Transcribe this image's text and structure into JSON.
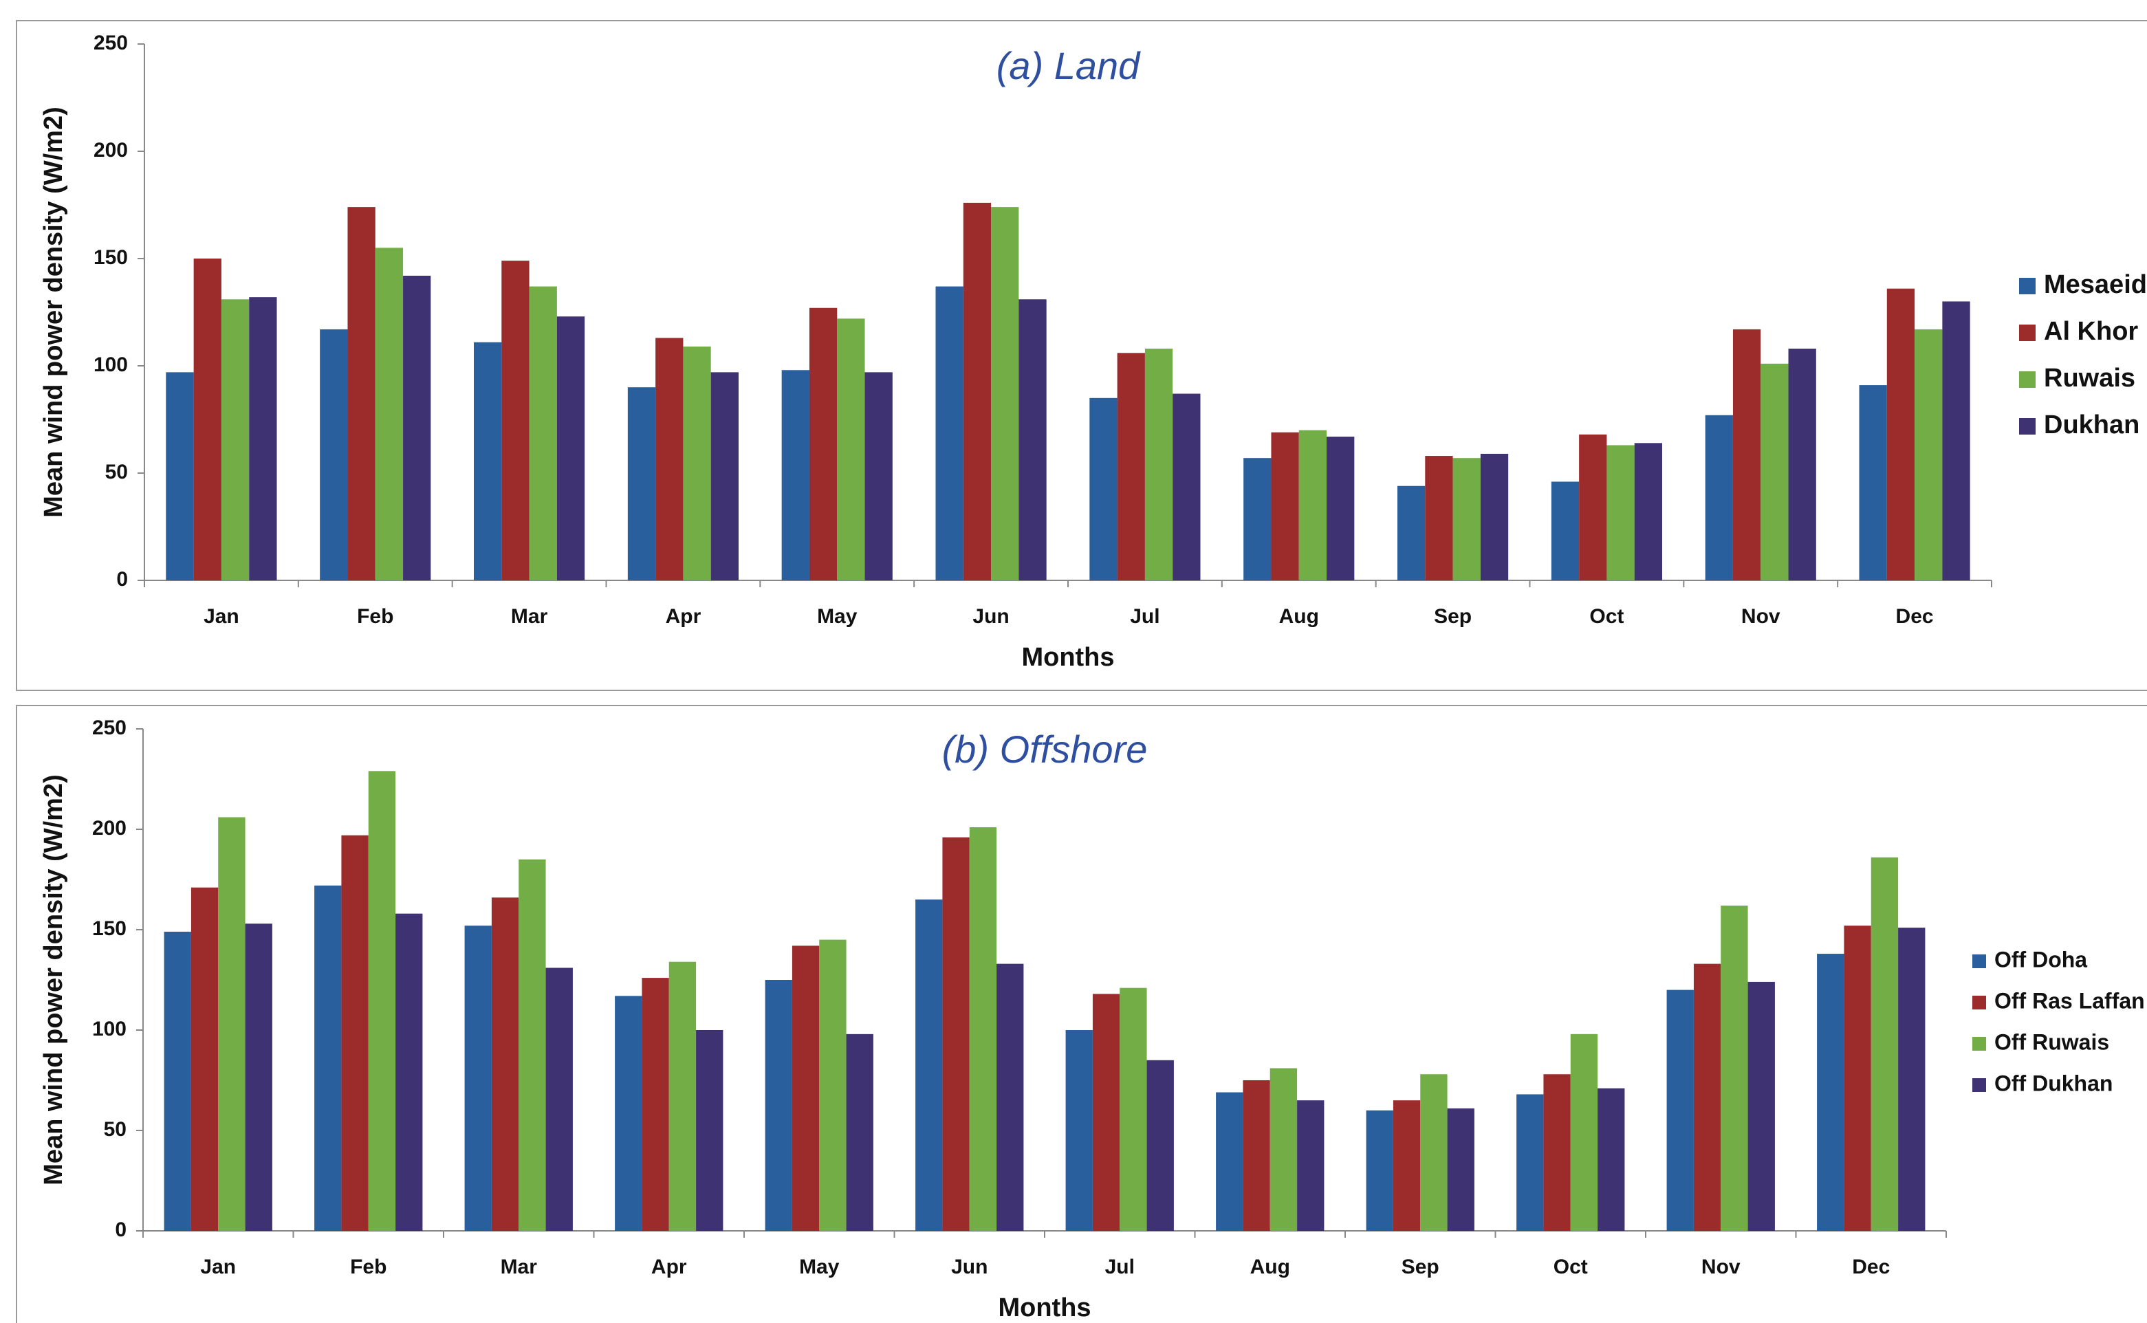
{
  "chart_data": [
    {
      "type": "bar",
      "title": "(a) Land",
      "x_label": "Months",
      "y_label": "Mean wind power density (W/m2)",
      "categories": [
        "Jan",
        "Feb",
        "Mar",
        "Apr",
        "May",
        "Jun",
        "Jul",
        "Aug",
        "Sep",
        "Oct",
        "Nov",
        "Dec"
      ],
      "series": [
        {
          "name": "Mesaeid",
          "color": "#2a5f9e",
          "values": [
            97,
            117,
            111,
            90,
            98,
            137,
            85,
            57,
            44,
            46,
            77,
            91
          ]
        },
        {
          "name": "Al Khor",
          "color": "#9c2b2b",
          "values": [
            150,
            174,
            149,
            113,
            127,
            176,
            106,
            69,
            58,
            68,
            117,
            136
          ]
        },
        {
          "name": "Ruwais",
          "color": "#72ad46",
          "values": [
            131,
            155,
            137,
            109,
            122,
            174,
            108,
            70,
            57,
            63,
            101,
            117
          ]
        },
        {
          "name": "Dukhan",
          "color": "#3e3273",
          "values": [
            132,
            142,
            123,
            97,
            97,
            131,
            87,
            67,
            59,
            64,
            108,
            130
          ]
        }
      ],
      "ylim": [
        0,
        250
      ],
      "yticks": [
        0,
        50,
        100,
        150,
        200,
        250
      ],
      "legend": "right"
    },
    {
      "type": "bar",
      "title": "(b) Offshore",
      "x_label": "Months",
      "y_label": "Mean wind power density (W/m2)",
      "categories": [
        "Jan",
        "Feb",
        "Mar",
        "Apr",
        "May",
        "Jun",
        "Jul",
        "Aug",
        "Sep",
        "Oct",
        "Nov",
        "Dec"
      ],
      "series": [
        {
          "name": "Off Doha",
          "color": "#2a5f9e",
          "values": [
            149,
            172,
            152,
            117,
            125,
            165,
            100,
            69,
            60,
            68,
            120,
            138
          ]
        },
        {
          "name": "Off Ras Laffan",
          "color": "#9c2b2b",
          "values": [
            171,
            197,
            166,
            126,
            142,
            196,
            118,
            75,
            65,
            78,
            133,
            152
          ]
        },
        {
          "name": "Off Ruwais",
          "color": "#72ad46",
          "values": [
            206,
            229,
            185,
            134,
            145,
            201,
            121,
            81,
            78,
            98,
            162,
            186
          ]
        },
        {
          "name": "Off Dukhan",
          "color": "#3e3273",
          "values": [
            153,
            158,
            131,
            100,
            98,
            133,
            85,
            65,
            61,
            71,
            124,
            151
          ]
        }
      ],
      "ylim": [
        0,
        250
      ],
      "yticks": [
        0,
        50,
        100,
        150,
        200,
        250
      ],
      "legend": "right"
    }
  ]
}
